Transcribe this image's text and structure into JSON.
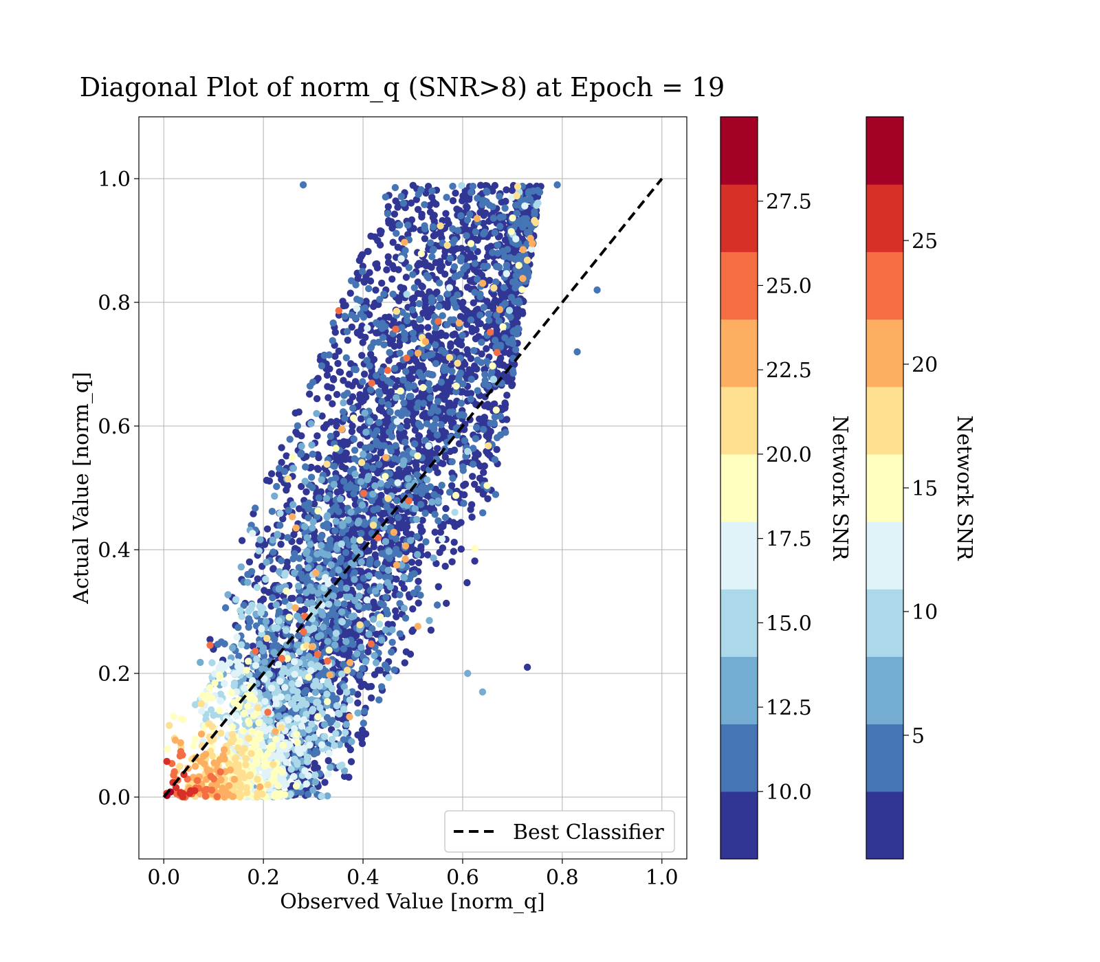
{
  "chart_data": {
    "type": "scatter",
    "title": "Diagonal Plot of norm_q (SNR>8) at Epoch = 19",
    "xlabel": "Observed Value [norm_q]",
    "ylabel": "Actual Value [norm_q]",
    "xlim": [
      -0.05,
      1.05
    ],
    "ylim": [
      -0.1,
      1.1
    ],
    "xticks": [
      "0.0",
      "0.2",
      "0.4",
      "0.6",
      "0.8",
      "1.0"
    ],
    "yticks": [
      "0.0",
      "0.2",
      "0.4",
      "0.6",
      "0.8",
      "1.0"
    ],
    "grid": true,
    "legend": {
      "position": "lower-right",
      "entries": [
        "Best Classifier"
      ]
    },
    "reference_line": {
      "name": "Best Classifier",
      "style": "dashed",
      "color": "#000000",
      "x": [
        0,
        1
      ],
      "y": [
        0,
        1
      ]
    },
    "colormap": [
      "#313695",
      "#4575b4",
      "#74add1",
      "#abd9e9",
      "#e0f3f8",
      "#ffffbf",
      "#fee090",
      "#fdae61",
      "#f46d43",
      "#d73027",
      "#a50026"
    ],
    "colorbars": [
      {
        "label": "Network SNR",
        "range": [
          8,
          30
        ],
        "ticks": [
          "10.0",
          "12.5",
          "15.0",
          "17.5",
          "20.0",
          "22.5",
          "25.0",
          "27.5"
        ]
      },
      {
        "label": "Network SNR",
        "range": [
          0,
          30
        ],
        "ticks": [
          "5",
          "10",
          "15",
          "20",
          "25"
        ]
      }
    ],
    "point_count_estimate": 9000,
    "cluster_summary": [
      {
        "region": "low norm_q (0–0.2)",
        "dominant_snr": "high (18–28)"
      },
      {
        "region": "mid norm_q (0.2–0.5)",
        "dominant_snr": "medium (12–17)"
      },
      {
        "region": "high actual norm_q (0.5–1.0)",
        "dominant_snr": "low (8–11)"
      }
    ],
    "outliers": [
      {
        "x": 0.79,
        "y": 0.99
      },
      {
        "x": 0.87,
        "y": 0.82
      },
      {
        "x": 0.83,
        "y": 0.72
      },
      {
        "x": 0.73,
        "y": 0.21
      },
      {
        "x": 0.64,
        "y": 0.17
      },
      {
        "x": 0.61,
        "y": 0.2
      },
      {
        "x": 0.66,
        "y": 0.98
      },
      {
        "x": 0.28,
        "y": 0.99
      }
    ]
  }
}
